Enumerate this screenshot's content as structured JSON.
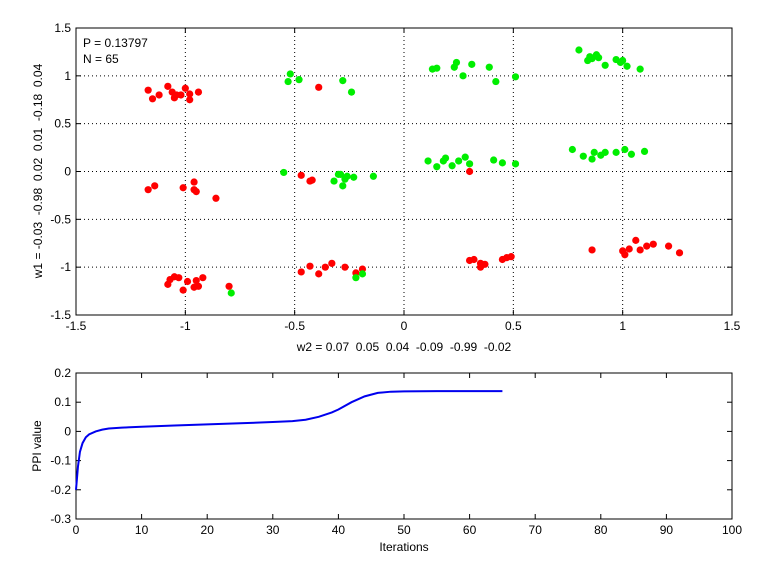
{
  "chart_data": [
    {
      "type": "scatter",
      "annotations": [
        "P = 0.13797",
        "N = 65"
      ],
      "xlabel": "w2 = 0.07  0.05  0.04  -0.09  -0.99  -0.02",
      "ylabel": "w1 = -0.03  -0.98  0.02  0.01  -0.18  0.04",
      "xlim": [
        -1.5,
        1.5
      ],
      "ylim": [
        -1.5,
        1.5
      ],
      "xticks": [
        "-1.5",
        "-1",
        "-0.5",
        "0",
        "0.5",
        "1",
        "1.5"
      ],
      "yticks": [
        "-1.5",
        "-1",
        "-0.5",
        "0",
        "0.5",
        "1",
        "1.5"
      ],
      "grid": true,
      "colors": {
        "red": "#ff0000",
        "green": "#00ee00"
      },
      "series": [
        {
          "color": "red",
          "points": [
            [
              -1.17,
              0.85
            ],
            [
              -1.15,
              0.76
            ],
            [
              -1.12,
              0.8
            ],
            [
              -1.08,
              0.89
            ],
            [
              -1.06,
              0.83
            ],
            [
              -1.05,
              0.77
            ],
            [
              -1.04,
              0.8
            ],
            [
              -1.02,
              0.8
            ],
            [
              -1.0,
              0.87
            ],
            [
              -0.98,
              0.75
            ],
            [
              -0.98,
              0.81
            ],
            [
              -0.94,
              0.83
            ],
            [
              -0.39,
              0.88
            ],
            [
              -1.17,
              -0.19
            ],
            [
              -1.14,
              -0.15
            ],
            [
              -1.01,
              -0.17
            ],
            [
              -0.96,
              -0.11
            ],
            [
              -0.96,
              -0.19
            ],
            [
              -0.95,
              -0.21
            ],
            [
              -0.86,
              -0.28
            ],
            [
              -0.47,
              -0.04
            ],
            [
              -0.43,
              -0.1
            ],
            [
              -0.42,
              -0.09
            ],
            [
              0.3,
              0.0
            ],
            [
              -1.08,
              -1.18
            ],
            [
              -1.07,
              -1.13
            ],
            [
              -1.05,
              -1.1
            ],
            [
              -1.03,
              -1.11
            ],
            [
              -1.01,
              -1.24
            ],
            [
              -0.99,
              -1.15
            ],
            [
              -0.96,
              -1.21
            ],
            [
              -0.95,
              -1.14
            ],
            [
              -0.94,
              -1.2
            ],
            [
              -0.92,
              -1.11
            ],
            [
              -0.8,
              -1.2
            ],
            [
              -0.47,
              -1.05
            ],
            [
              -0.43,
              -0.99
            ],
            [
              -0.39,
              -1.07
            ],
            [
              -0.36,
              -1.0
            ],
            [
              -0.33,
              -0.96
            ],
            [
              -0.27,
              -1.0
            ],
            [
              -0.22,
              -1.06
            ],
            [
              -0.19,
              -1.02
            ],
            [
              0.3,
              -0.93
            ],
            [
              0.32,
              -0.92
            ],
            [
              0.35,
              -0.96
            ],
            [
              0.35,
              -1.0
            ],
            [
              0.37,
              -0.97
            ],
            [
              0.45,
              -0.92
            ],
            [
              0.47,
              -0.9
            ],
            [
              0.49,
              -0.89
            ],
            [
              0.86,
              -0.82
            ],
            [
              1.0,
              -0.83
            ],
            [
              1.01,
              -0.87
            ],
            [
              1.03,
              -0.81
            ],
            [
              1.06,
              -0.72
            ],
            [
              1.08,
              -0.82
            ],
            [
              1.11,
              -0.78
            ],
            [
              1.14,
              -0.76
            ],
            [
              1.21,
              -0.78
            ],
            [
              1.26,
              -0.85
            ]
          ]
        },
        {
          "color": "green",
          "points": [
            [
              -0.52,
              1.02
            ],
            [
              -0.53,
              0.94
            ],
            [
              -0.48,
              0.96
            ],
            [
              -0.28,
              0.95
            ],
            [
              -0.24,
              0.83
            ],
            [
              0.13,
              1.07
            ],
            [
              0.15,
              1.08
            ],
            [
              0.23,
              1.09
            ],
            [
              0.24,
              1.14
            ],
            [
              0.27,
              1.0
            ],
            [
              0.31,
              1.12
            ],
            [
              0.39,
              1.09
            ],
            [
              0.42,
              0.94
            ],
            [
              0.51,
              0.99
            ],
            [
              0.8,
              1.27
            ],
            [
              0.84,
              1.16
            ],
            [
              0.85,
              1.2
            ],
            [
              0.86,
              1.18
            ],
            [
              0.88,
              1.22
            ],
            [
              0.89,
              1.19
            ],
            [
              0.92,
              1.11
            ],
            [
              0.97,
              1.17
            ],
            [
              0.99,
              1.14
            ],
            [
              1.0,
              1.16
            ],
            [
              1.02,
              1.1
            ],
            [
              1.08,
              1.07
            ],
            [
              -0.55,
              -0.01
            ],
            [
              -0.32,
              -0.1
            ],
            [
              -0.3,
              -0.03
            ],
            [
              -0.29,
              -0.03
            ],
            [
              -0.27,
              -0.08
            ],
            [
              -0.26,
              -0.05
            ],
            [
              -0.28,
              -0.15
            ],
            [
              -0.23,
              -0.06
            ],
            [
              -0.14,
              -0.05
            ],
            [
              0.11,
              0.11
            ],
            [
              0.15,
              0.05
            ],
            [
              0.18,
              0.11
            ],
            [
              0.19,
              0.14
            ],
            [
              0.22,
              0.06
            ],
            [
              0.25,
              0.11
            ],
            [
              0.28,
              0.15
            ],
            [
              0.3,
              0.08
            ],
            [
              0.41,
              0.12
            ],
            [
              0.45,
              0.09
            ],
            [
              0.51,
              0.08
            ],
            [
              0.77,
              0.23
            ],
            [
              0.82,
              0.16
            ],
            [
              0.86,
              0.13
            ],
            [
              0.87,
              0.2
            ],
            [
              0.9,
              0.17
            ],
            [
              0.92,
              0.2
            ],
            [
              0.97,
              0.2
            ],
            [
              1.01,
              0.23
            ],
            [
              1.04,
              0.18
            ],
            [
              1.1,
              0.21
            ],
            [
              -0.79,
              -1.27
            ],
            [
              -0.22,
              -1.11
            ],
            [
              -0.19,
              -1.07
            ]
          ]
        }
      ]
    },
    {
      "type": "line",
      "xlabel": "Iterations",
      "ylabel": "PPI value",
      "xlim": [
        0,
        100
      ],
      "ylim": [
        -0.3,
        0.2
      ],
      "xticks": [
        "0",
        "10",
        "20",
        "30",
        "40",
        "50",
        "60",
        "70",
        "80",
        "90",
        "100"
      ],
      "yticks": [
        "-0.3",
        "-0.2",
        "-0.1",
        "0",
        "0.1",
        "0.2"
      ],
      "grid": false,
      "colors": {
        "line": "#0000ee"
      },
      "series": [
        {
          "x": [
            0,
            0.3,
            0.6,
            1,
            1.5,
            2,
            3,
            4,
            5,
            7,
            10,
            15,
            20,
            25,
            30,
            33,
            35,
            37,
            39,
            40,
            42,
            44,
            46,
            48,
            50,
            55,
            60,
            65
          ],
          "y": [
            -0.2,
            -0.12,
            -0.07,
            -0.04,
            -0.02,
            -0.01,
            0.0,
            0.006,
            0.01,
            0.013,
            0.016,
            0.02,
            0.024,
            0.028,
            0.032,
            0.035,
            0.04,
            0.05,
            0.065,
            0.075,
            0.1,
            0.12,
            0.132,
            0.136,
            0.137,
            0.138,
            0.138,
            0.138
          ]
        }
      ]
    }
  ]
}
